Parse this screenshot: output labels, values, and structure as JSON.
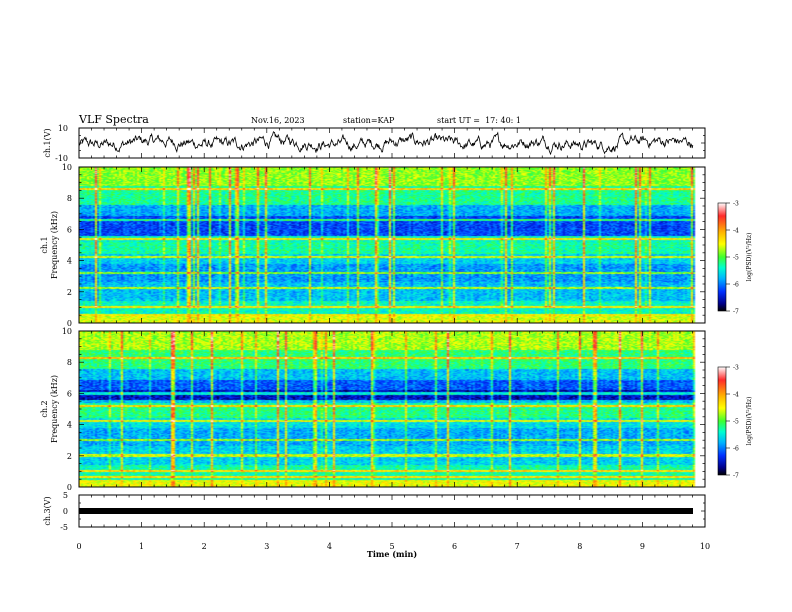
{
  "header": {
    "title": "VLF Spectra",
    "date": "Nov.16, 2023",
    "station": "station=KAP",
    "start_time": "start UT =  17: 40: 1"
  },
  "colorbar": {
    "label": "log(PSD)(V²/Hz)",
    "ticks": [
      "-3",
      "-4",
      "-5",
      "-6",
      "-7"
    ],
    "colors": [
      "#ffffff",
      "#ff2a2a",
      "#ffb400",
      "#ffff00",
      "#40ff30",
      "#00ffd0",
      "#00b4ff",
      "#0030ff",
      "#00008b",
      "#000000"
    ]
  },
  "chart_data": [
    {
      "type": "line",
      "name": "ch1-waveform",
      "ylabel": "ch.1(V)",
      "yticks": [
        "10",
        "-10"
      ],
      "ylim": [
        -10,
        10
      ],
      "xlim": [
        0,
        10
      ]
    },
    {
      "type": "heatmap",
      "name": "ch1-spectrogram",
      "ylabel_line1": "ch.1",
      "ylabel_line2": "Frequency (kHz)",
      "yticks": [
        "0",
        "2",
        "4",
        "6",
        "8",
        "10"
      ],
      "ylim": [
        0,
        10
      ],
      "xlim": [
        0,
        10
      ],
      "zlim": [
        -7,
        -3
      ]
    },
    {
      "type": "heatmap",
      "name": "ch2-spectrogram",
      "ylabel_line1": "ch.2",
      "ylabel_line2": "Frequency (kHz)",
      "yticks": [
        "0",
        "2",
        "4",
        "6",
        "8",
        "10"
      ],
      "ylim": [
        0,
        10
      ],
      "xlim": [
        0,
        10
      ],
      "zlim": [
        -7,
        -3
      ]
    },
    {
      "type": "line",
      "name": "ch3-waveform",
      "ylabel": "ch.3(V)",
      "yticks": [
        "5",
        "0",
        "-5"
      ],
      "ylim": [
        -5,
        5
      ],
      "xlim": [
        0,
        10
      ]
    }
  ],
  "xaxis": {
    "label": "Time (min)",
    "ticks": [
      "0",
      "1",
      "2",
      "3",
      "4",
      "5",
      "6",
      "7",
      "8",
      "9",
      "10"
    ]
  }
}
